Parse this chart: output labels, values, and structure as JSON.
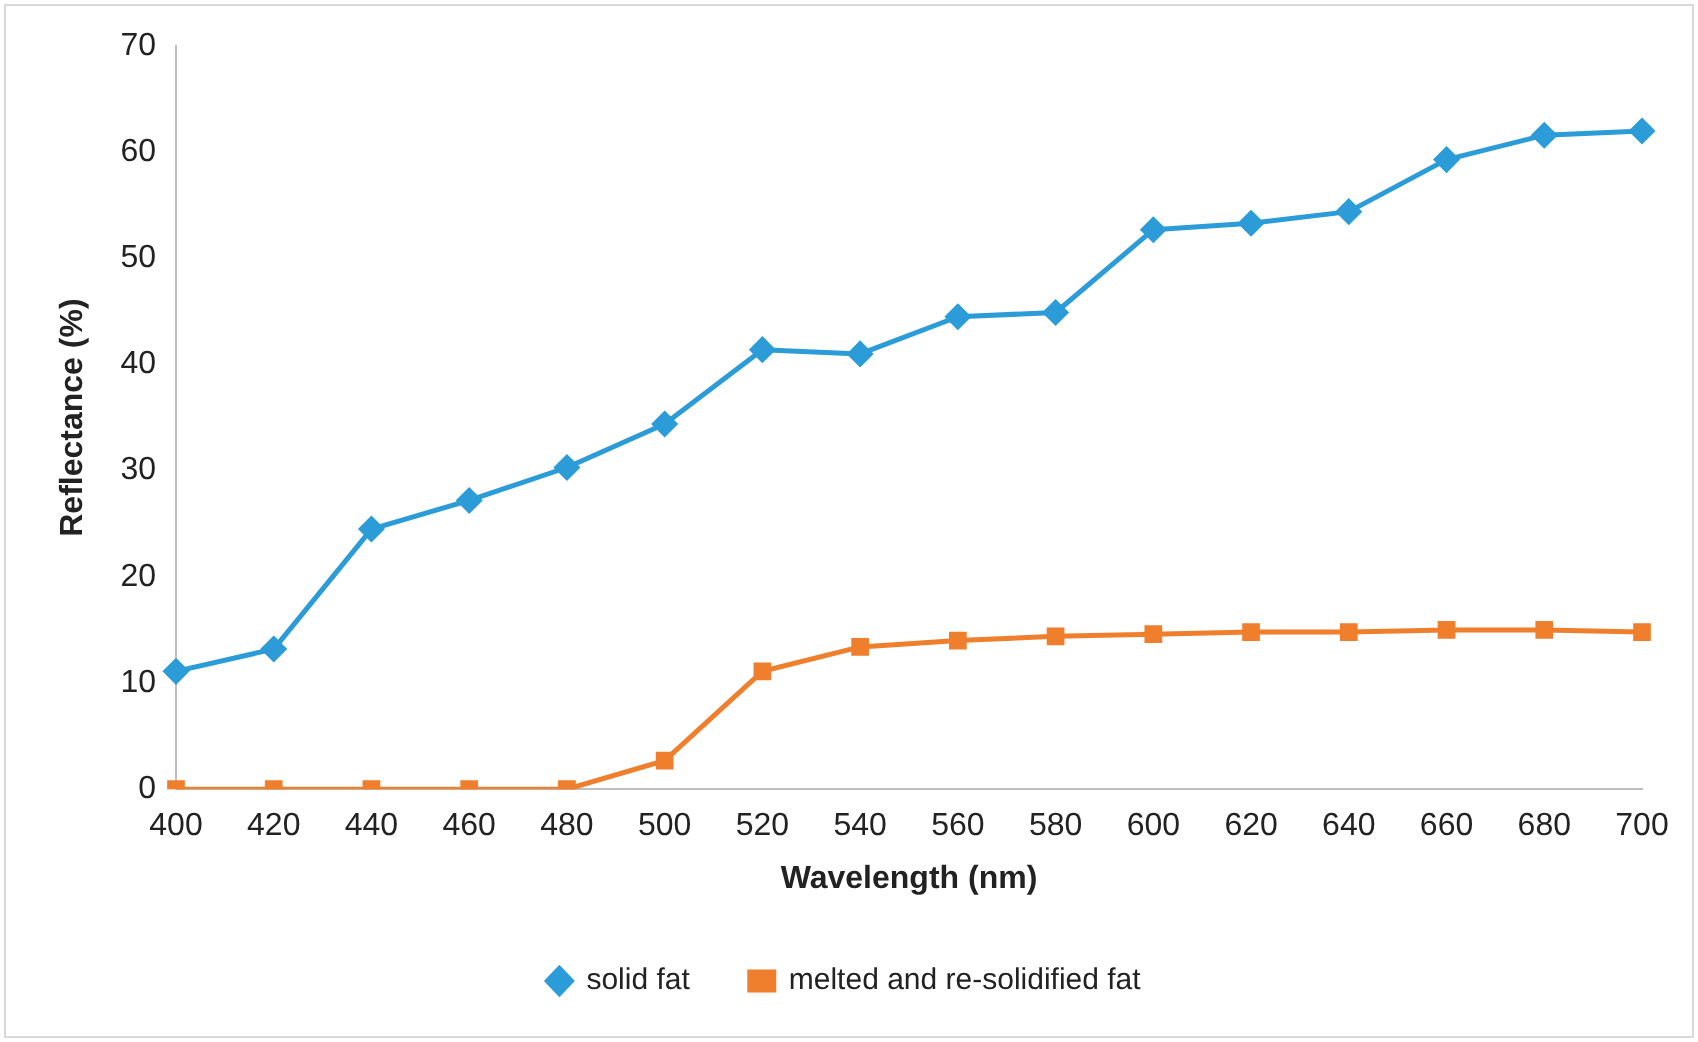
{
  "chart_data": {
    "type": "line",
    "xlabel": "Wavelength (nm)",
    "ylabel": "Reflectance (%)",
    "categories": [
      "400",
      "420",
      "440",
      "460",
      "480",
      "500",
      "520",
      "540",
      "560",
      "580",
      "600",
      "620",
      "640",
      "660",
      "680",
      "700"
    ],
    "series": [
      {
        "name": "solid fat",
        "color": "#2b9cd8",
        "marker": "diamond",
        "values": [
          11.1,
          13.2,
          24.5,
          27.2,
          30.3,
          34.4,
          41.4,
          41,
          44.5,
          44.9,
          52.7,
          53.3,
          54.4,
          59.3,
          61.6,
          62
        ]
      },
      {
        "name": "melted and re-solidified fat",
        "color": "#f07f2d",
        "marker": "square",
        "values": [
          0,
          0,
          0,
          0,
          0,
          2.7,
          11.1,
          13.4,
          14,
          14.4,
          14.6,
          14.8,
          14.8,
          15,
          15,
          14.8
        ]
      }
    ],
    "ylim": [
      0,
      70
    ],
    "yticks": [
      0,
      10,
      20,
      30,
      40,
      50,
      60,
      70
    ],
    "grid": false,
    "legend": "bottom",
    "line_style": "solid"
  }
}
